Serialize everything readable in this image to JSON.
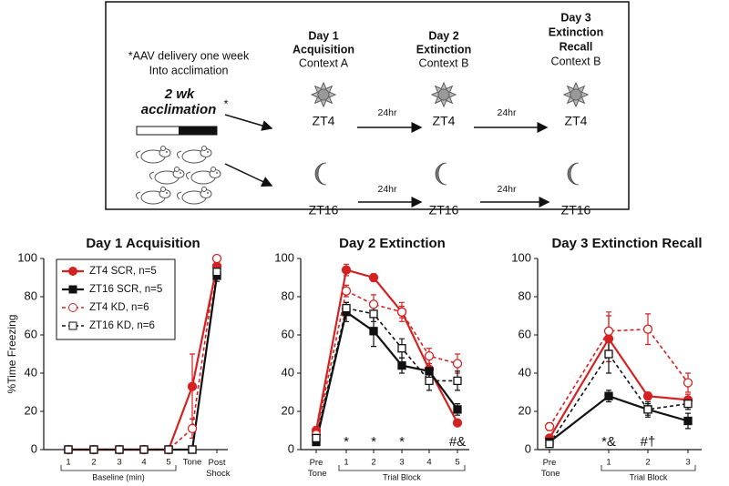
{
  "diagram": {
    "note": [
      "*AAV delivery one week",
      "Into acclimation"
    ],
    "acclimation": [
      "2 wk",
      "acclimation"
    ],
    "asterisk": "*",
    "days": [
      {
        "title": [
          "Day 1",
          "Acquisition"
        ],
        "context": "Context A",
        "light": "ZT4",
        "dark": "ZT16"
      },
      {
        "title": [
          "Day 2",
          "Extinction"
        ],
        "context": "Context B",
        "light": "ZT4",
        "dark": "ZT16"
      },
      {
        "title": [
          "Day 3",
          "Extinction",
          "Recall"
        ],
        "context": "Context B",
        "light": "ZT4",
        "dark": "ZT16"
      }
    ],
    "interval": [
      "24hr",
      "24hr",
      "24hr",
      "24hr"
    ]
  },
  "chart_data": [
    {
      "type": "line",
      "title": "Day 1  Acquisition",
      "ylabel": "%Time Freezing",
      "xlabel": "Baseline (min)",
      "categories": [
        "1",
        "2",
        "3",
        "4",
        "5",
        "Tone",
        "Post Shock"
      ],
      "ylim": [
        0,
        100
      ],
      "yticks": [
        0,
        20,
        40,
        60,
        80,
        100
      ],
      "legend": "upper left",
      "series": [
        {
          "name": "ZT4 SCR, n=5",
          "color": "#d42222",
          "marker": "circle",
          "filled": true,
          "dashed": false,
          "values": [
            0,
            0,
            0,
            0,
            0,
            33,
            96
          ],
          "errors": [
            0,
            0,
            0,
            0,
            0,
            17,
            2
          ]
        },
        {
          "name": "ZT16 SCR, n=5",
          "color": "#111111",
          "marker": "square",
          "filled": true,
          "dashed": false,
          "values": [
            0,
            0,
            0,
            0,
            0,
            0,
            91
          ],
          "errors": [
            0,
            0,
            0,
            0,
            0,
            0,
            3
          ]
        },
        {
          "name": "ZT4 KD, n=6",
          "color": "#d42222",
          "marker": "circle",
          "filled": false,
          "dashed": true,
          "values": [
            0,
            0,
            0,
            0,
            0,
            11,
            100
          ],
          "errors": [
            0,
            0,
            0,
            0,
            0,
            5,
            1
          ]
        },
        {
          "name": "ZT16 KD, n=6",
          "color": "#111111",
          "marker": "square",
          "filled": false,
          "dashed": true,
          "values": [
            0,
            0,
            0,
            0,
            0,
            0,
            93
          ],
          "errors": [
            0,
            0,
            0,
            0,
            0,
            0,
            3
          ]
        }
      ]
    },
    {
      "type": "line",
      "title": "Day 2  Extinction",
      "xlabel": "Trial Block",
      "categories": [
        "Pre Tone",
        "1",
        "2",
        "3",
        "4",
        "5"
      ],
      "ylim": [
        0,
        100
      ],
      "yticks": [
        0,
        20,
        40,
        60,
        80,
        100
      ],
      "annotations": [
        {
          "text": "*",
          "x": "1"
        },
        {
          "text": "*",
          "x": "2"
        },
        {
          "text": "*",
          "x": "3"
        },
        {
          "text": "#&",
          "x": "5"
        }
      ],
      "series": [
        {
          "color": "#d42222",
          "marker": "circle",
          "filled": true,
          "dashed": false,
          "values": [
            10,
            94,
            90,
            72,
            42,
            14
          ],
          "errors": [
            2,
            3,
            2,
            5,
            6,
            1
          ]
        },
        {
          "color": "#111111",
          "marker": "square",
          "filled": true,
          "dashed": false,
          "values": [
            4,
            72,
            62,
            44,
            41,
            21
          ],
          "errors": [
            1,
            5,
            8,
            4,
            4,
            3
          ]
        },
        {
          "color": "#d42222",
          "marker": "circle",
          "filled": false,
          "dashed": true,
          "values": [
            8,
            83,
            76,
            72,
            49,
            45
          ],
          "errors": [
            2,
            3,
            5,
            3,
            4,
            5
          ]
        },
        {
          "color": "#111111",
          "marker": "square",
          "filled": false,
          "dashed": true,
          "values": [
            6,
            74,
            71,
            53,
            36,
            36
          ],
          "errors": [
            1,
            3,
            4,
            5,
            5,
            5
          ]
        }
      ]
    },
    {
      "type": "line",
      "title": "Day 3  Extinction Recall",
      "xlabel": "Trial Block",
      "categories": [
        "Pre Tone",
        "1",
        "2",
        "3"
      ],
      "ylim": [
        0,
        100
      ],
      "yticks": [
        0,
        20,
        40,
        60,
        80,
        100
      ],
      "annotations": [
        {
          "text": "*&",
          "x": "1"
        },
        {
          "text": "#†",
          "x": "2"
        }
      ],
      "series": [
        {
          "color": "#d42222",
          "marker": "circle",
          "filled": true,
          "dashed": false,
          "values": [
            6,
            58,
            28,
            26
          ],
          "errors": [
            1,
            12,
            2,
            3
          ]
        },
        {
          "color": "#111111",
          "marker": "square",
          "filled": true,
          "dashed": false,
          "values": [
            4,
            28,
            21,
            15
          ],
          "errors": [
            1,
            3,
            3,
            4
          ]
        },
        {
          "color": "#d42222",
          "marker": "circle",
          "filled": false,
          "dashed": true,
          "values": [
            12,
            62,
            63,
            35
          ],
          "errors": [
            2,
            10,
            8,
            5
          ]
        },
        {
          "color": "#111111",
          "marker": "square",
          "filled": false,
          "dashed": true,
          "values": [
            3,
            50,
            21,
            24
          ],
          "errors": [
            1,
            10,
            4,
            3
          ]
        }
      ]
    }
  ]
}
